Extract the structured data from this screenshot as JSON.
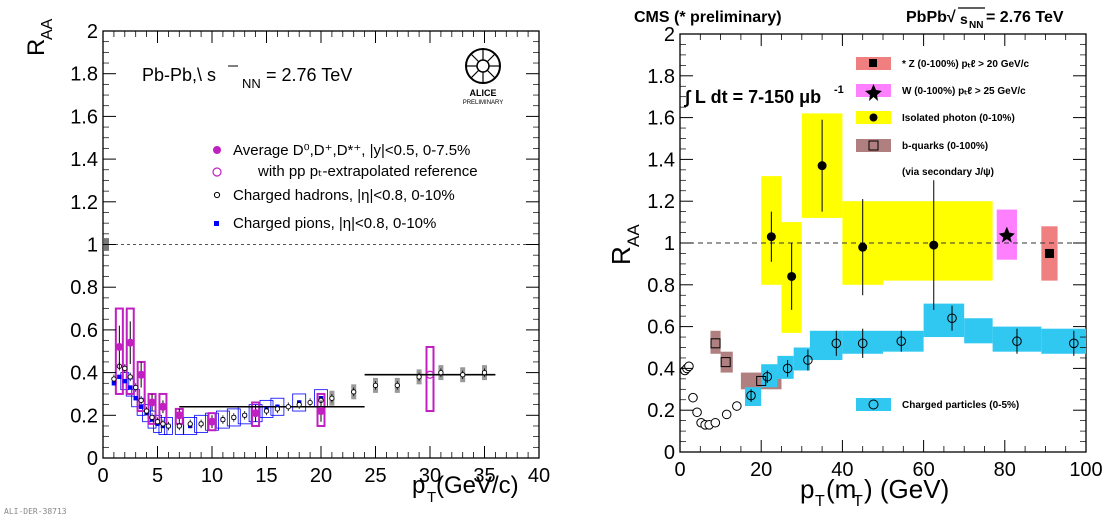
{
  "left_panel": {
    "ylabel": "R",
    "ylabel_sub": "AA",
    "xlabel": "p",
    "xlabel_sub": "T",
    "xlabel_unit": " (GeV/c)",
    "system_label": "Pb-Pb,\\ s",
    "system_sub": "NN",
    "system_value": " = 2.76 TeV",
    "logo_text_1": "ALICE",
    "logo_text_2": "PRELIMINARY",
    "footer_tag": "ALI-DER-38713",
    "x_ticks": [
      "0",
      "5",
      "10",
      "15",
      "20",
      "25",
      "30",
      "35",
      "40"
    ],
    "y_ticks": [
      "0",
      "0.2",
      "0.4",
      "0.6",
      "0.8",
      "1",
      "1.2",
      "1.4",
      "1.6",
      "1.8",
      "2"
    ],
    "legend": [
      "Average D⁰,D⁺,D*⁺, |y|<0.5, 0-7.5%",
      "with pp pₜ-extrapolated reference",
      "Charged hadrons, |η|<0.8, 0-10%",
      "Charged pions, |η|<0.8, 0-10%"
    ]
  },
  "right_panel": {
    "header_left": "CMS (* preliminary)",
    "header_right": "PbPb√",
    "header_right_sub": "s",
    "header_right_subsub": "NN",
    "header_right_value": " = 2.76 TeV",
    "lumi": "∫ L dt = 7-150 μb",
    "lumi_sup": "-1",
    "ylabel": "R",
    "ylabel_sub": "AA",
    "xlabel": "p",
    "xlabel_sub": "T",
    "xlabel_rest": "(m",
    "xlabel_sub2": "T",
    "xlabel_unit": ") (GeV)",
    "x_ticks": [
      "0",
      "20",
      "40",
      "60",
      "80",
      "100"
    ],
    "y_ticks": [
      "0",
      "0.2",
      "0.4",
      "0.6",
      "0.8",
      "1",
      "1.2",
      "1.4",
      "1.6",
      "1.8",
      "2"
    ],
    "legend": [
      "* Z  (0-100%) pₜℓ > 20 GeV/c",
      "W  (0-100%) pₜℓ > 25 GeV/c",
      "Isolated photon  (0-10%)",
      "b-quarks (0-100%)",
      "(via secondary J/ψ)",
      "Charged particles (0-5%)"
    ]
  },
  "colors": {
    "d_meson": "#c020c0",
    "hadron_sys": "#808080",
    "pion": "#0000ff",
    "z": "#f08080",
    "w": "#ff80ff",
    "photon": "#ffff00",
    "bquark": "#b08080",
    "charged": "#30c8f0"
  },
  "chart_data": [
    {
      "type": "scatter",
      "xlim": [
        0,
        40
      ],
      "ylim": [
        0,
        2
      ],
      "reference_line": 1,
      "series": [
        {
          "name": "Average D⁰,D⁺,D*⁺, |y|<0.5, 0-7.5%",
          "x": [
            1.5,
            2.5,
            3.5,
            4.5,
            5.5,
            7,
            10,
            14,
            20
          ],
          "y": [
            0.52,
            0.54,
            0.39,
            0.26,
            0.24,
            0.2,
            0.17,
            0.21,
            0.22
          ],
          "err": [
            0.1,
            0.1,
            0.06,
            0.04,
            0.03,
            0.03,
            0.03,
            0.04,
            0.05
          ],
          "sys_lo": [
            0.3,
            0.3,
            0.22,
            0.16,
            0.16,
            0.16,
            0.13,
            0.15,
            0.15
          ],
          "sys_hi": [
            0.7,
            0.7,
            0.45,
            0.3,
            0.3,
            0.23,
            0.21,
            0.26,
            0.3
          ]
        },
        {
          "name": "with pp pₜ-extrapolated reference",
          "x": [
            30
          ],
          "y": [
            0.39
          ],
          "sys_lo": [
            0.22
          ],
          "sys_hi": [
            0.52
          ]
        },
        {
          "name": "Charged hadrons, |η|<0.8, 0-10%",
          "x": [
            1,
            1.5,
            2,
            2.5,
            3,
            3.5,
            4,
            4.5,
            5,
            5.5,
            6,
            7,
            8,
            9,
            10,
            11,
            12,
            13,
            14,
            15,
            16,
            17,
            18,
            19,
            20,
            21,
            23,
            25,
            27,
            29,
            31,
            33,
            35
          ],
          "y": [
            0.37,
            0.43,
            0.42,
            0.38,
            0.33,
            0.27,
            0.22,
            0.19,
            0.17,
            0.16,
            0.15,
            0.15,
            0.16,
            0.16,
            0.17,
            0.18,
            0.19,
            0.2,
            0.21,
            0.22,
            0.23,
            0.24,
            0.25,
            0.26,
            0.27,
            0.28,
            0.31,
            0.34,
            0.34,
            0.38,
            0.4,
            0.39,
            0.4
          ]
        },
        {
          "name": "Charged pions, |η|<0.8, 0-10%",
          "x": [
            1,
            1.5,
            2,
            2.5,
            3,
            3.5,
            4,
            4.5,
            5,
            5.5,
            6,
            7,
            8,
            9,
            10,
            11,
            12,
            13,
            14,
            15,
            16,
            18,
            20
          ],
          "y": [
            0.35,
            0.38,
            0.36,
            0.33,
            0.28,
            0.24,
            0.21,
            0.18,
            0.16,
            0.15,
            0.15,
            0.15,
            0.15,
            0.16,
            0.17,
            0.18,
            0.19,
            0.2,
            0.21,
            0.23,
            0.24,
            0.26,
            0.28
          ]
        }
      ],
      "fit_lines": [
        {
          "x": [
            7,
            24
          ],
          "y": [
            0.24,
            0.24
          ]
        },
        {
          "x": [
            24,
            36
          ],
          "y": [
            0.39,
            0.39
          ]
        }
      ]
    },
    {
      "type": "scatter",
      "xlim": [
        0,
        100
      ],
      "ylim": [
        0,
        2
      ],
      "reference_line": 1,
      "series": [
        {
          "name": "* Z  (0-100%) pₜℓ > 20 GeV/c",
          "x": [
            91
          ],
          "y": [
            0.95
          ],
          "band": [
            [
              89,
              0.82,
              93,
              1.08
            ]
          ]
        },
        {
          "name": "W  (0-100%) pₜℓ > 25 GeV/c",
          "x": [
            80.5
          ],
          "y": [
            1.04
          ],
          "band": [
            [
              78,
              0.92,
              83,
              1.16
            ]
          ]
        },
        {
          "name": "Isolated photon  (0-10%)",
          "x": [
            22.5,
            27.5,
            35,
            45,
            62.5
          ],
          "y": [
            1.03,
            0.84,
            1.37,
            0.98,
            0.99
          ],
          "err": [
            0.12,
            0.16,
            0.22,
            0.23,
            0.31
          ],
          "band": [
            [
              20,
              0.8,
              25,
              1.32
            ],
            [
              25,
              0.57,
              30,
              1.1
            ],
            [
              30,
              1.12,
              40,
              1.62
            ],
            [
              40,
              0.8,
              50,
              1.2
            ],
            [
              50,
              0.82,
              77,
              1.2
            ]
          ]
        },
        {
          "name": "b-quarks (0-100%)",
          "x": [
            8.75,
            11.25,
            20
          ],
          "y": [
            0.52,
            0.43,
            0.34
          ],
          "band": [
            [
              7.5,
              0.47,
              10,
              0.58
            ],
            [
              10,
              0.38,
              13,
              0.48
            ],
            [
              15,
              0.3,
              25,
              0.38
            ]
          ]
        },
        {
          "name": "Charged particles (0-5%)",
          "x": [
            1.2,
            1.7,
            2.2,
            3.2,
            4.2,
            5.2,
            6.2,
            7.2,
            8.7,
            11.5,
            14,
            17.5,
            21.5,
            26.5,
            31.5,
            38.5,
            45,
            54.5,
            67,
            83,
            97
          ],
          "y": [
            0.39,
            0.4,
            0.41,
            0.26,
            0.19,
            0.14,
            0.13,
            0.13,
            0.14,
            0.18,
            0.22,
            0.27,
            0.36,
            0.4,
            0.44,
            0.52,
            0.52,
            0.53,
            0.64,
            0.53,
            0.52
          ],
          "err": [
            0.02,
            0.02,
            0.02,
            0.02,
            0.02,
            0.02,
            0.02,
            0.02,
            0.02,
            0.02,
            0.02,
            0.03,
            0.03,
            0.04,
            0.05,
            0.06,
            0.07,
            0.05,
            0.06,
            0.06,
            0.06
          ],
          "band": [
            [
              16,
              0.22,
              20,
              0.31
            ],
            [
              20,
              0.31,
              24,
              0.42
            ],
            [
              24,
              0.35,
              28,
              0.46
            ],
            [
              28,
              0.39,
              32,
              0.5
            ],
            [
              32,
              0.44,
              40,
              0.58
            ],
            [
              40,
              0.47,
              50,
              0.58
            ],
            [
              50,
              0.48,
              60,
              0.58
            ],
            [
              60,
              0.55,
              70,
              0.71
            ],
            [
              70,
              0.52,
              77,
              0.64
            ],
            [
              77,
              0.48,
              89,
              0.6
            ],
            [
              89,
              0.47,
              100,
              0.59
            ]
          ]
        }
      ]
    }
  ]
}
